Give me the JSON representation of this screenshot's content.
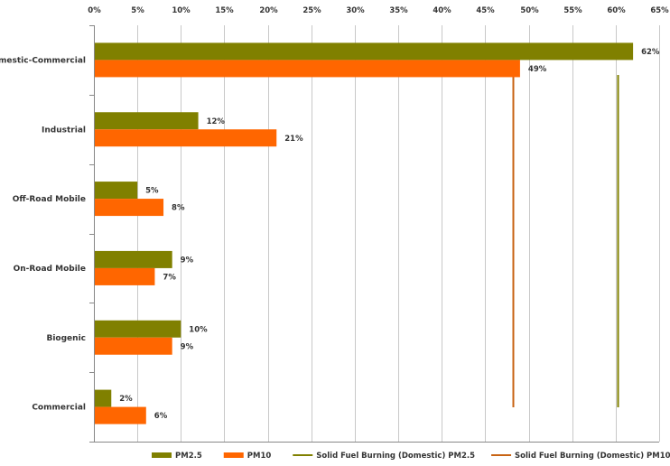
{
  "chart_data": {
    "type": "bar",
    "orientation": "horizontal",
    "categories": [
      "Domestic-Commercial",
      "Industrial",
      "Off-Road Mobile",
      "On-Road Mobile",
      "Biogenic",
      "Commercial"
    ],
    "series": [
      {
        "name": "PM2.5",
        "values": [
          62,
          12,
          5,
          9,
          10,
          2
        ],
        "labels": [
          "62%",
          "12%",
          "5%",
          "9%",
          "10%",
          "2%"
        ],
        "color": "#808000"
      },
      {
        "name": "PM10",
        "values": [
          49,
          21,
          8,
          7,
          9,
          6
        ],
        "labels": [
          "49%",
          "21%",
          "8%",
          "7%",
          "9%",
          "6%"
        ],
        "color": "#ff6600"
      }
    ],
    "reference_lines": [
      {
        "name": "Solid Fuel Burning (Domestic) PM2.5",
        "value": 60.2,
        "color": "#808000"
      },
      {
        "name": "Solid Fuel Burning (Domestic) PM10",
        "value": 48.2,
        "color": "#c86414"
      }
    ],
    "xlim": [
      0,
      65
    ],
    "xticks": [
      0,
      5,
      10,
      15,
      20,
      25,
      30,
      35,
      40,
      45,
      50,
      55,
      60,
      65
    ],
    "xtick_labels": [
      "0%",
      "5%",
      "10%",
      "15%",
      "20%",
      "25%",
      "30%",
      "35%",
      "40%",
      "45%",
      "50%",
      "55%",
      "60%",
      "65%"
    ],
    "xaxis_position": "top",
    "grid": true,
    "legend_position": "bottom"
  }
}
